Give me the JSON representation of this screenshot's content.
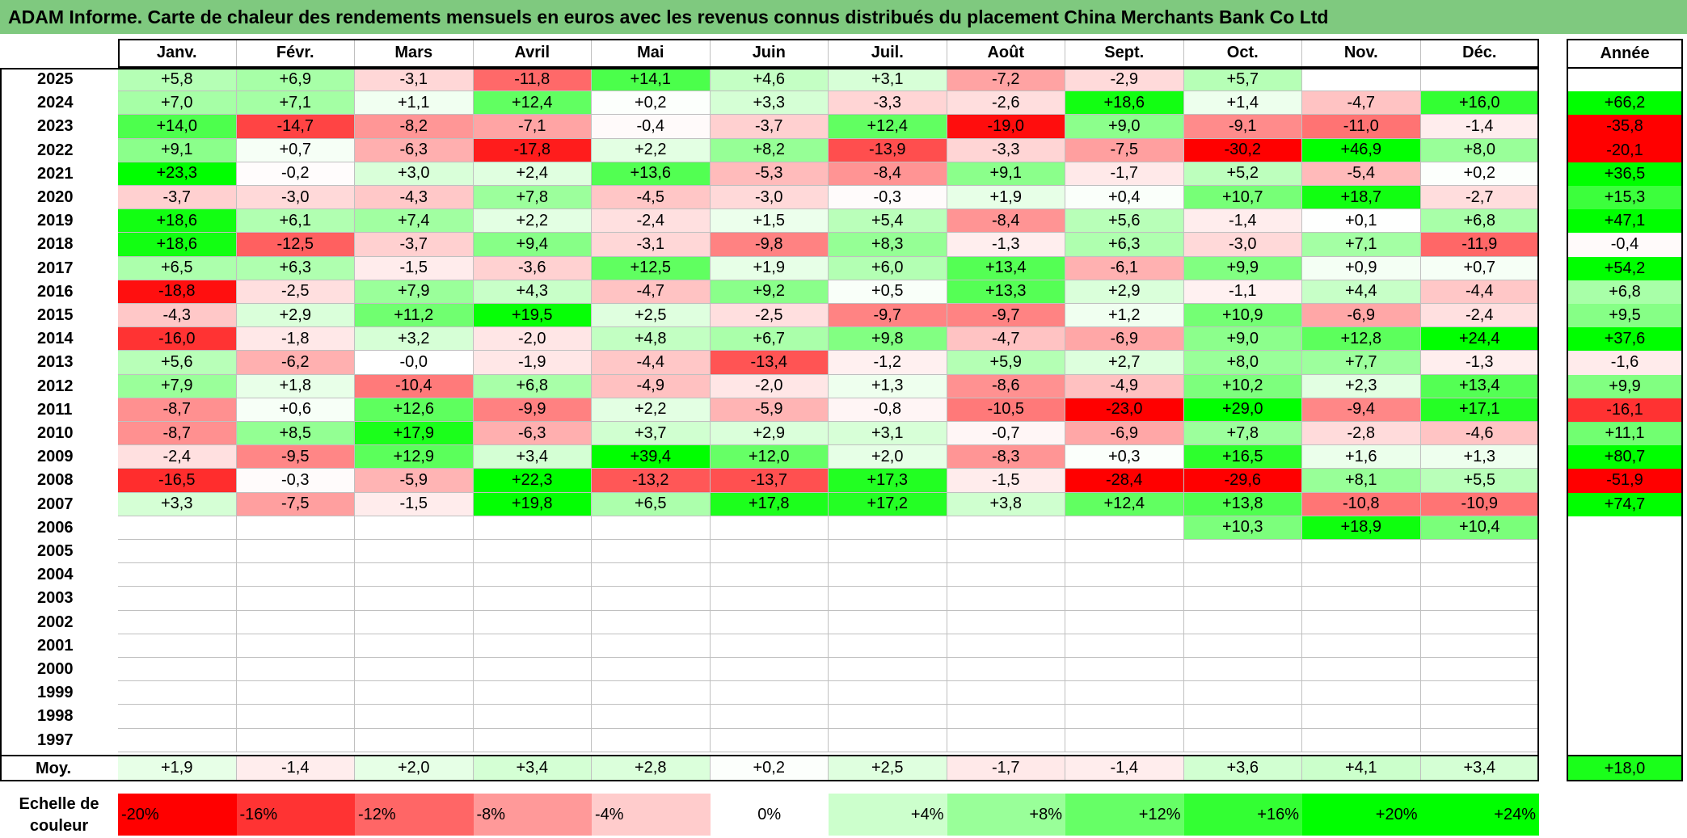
{
  "title": "ADAM Informe. Carte de chaleur des rendements mensuels en euros avec les revenus connus distribués du placement China Merchants Bank Co Ltd",
  "chart_data": {
    "type": "heatmap",
    "title": "ADAM Informe. Carte de chaleur des rendements mensuels en euros avec les revenus connus distribués du placement China Merchants Bank Co Ltd",
    "months": [
      "Janv.",
      "Févr.",
      "Mars",
      "Avril",
      "Mai",
      "Juin",
      "Juil.",
      "Août",
      "Sept.",
      "Oct.",
      "Nov.",
      "Déc."
    ],
    "year_header": "Année",
    "rows": [
      {
        "year": "2025",
        "values": [
          "+5,8",
          "+6,9",
          "-3,1",
          "-11,8",
          "+14,1",
          "+4,6",
          "+3,1",
          "-7,2",
          "-2,9",
          "+5,7",
          "",
          ""
        ],
        "annual": ""
      },
      {
        "year": "2024",
        "values": [
          "+7,0",
          "+7,1",
          "+1,1",
          "+12,4",
          "+0,2",
          "+3,3",
          "-3,3",
          "-2,6",
          "+18,6",
          "+1,4",
          "-4,7",
          "+16,0"
        ],
        "annual": "+66,2"
      },
      {
        "year": "2023",
        "values": [
          "+14,0",
          "-14,7",
          "-8,2",
          "-7,1",
          "-0,4",
          "-3,7",
          "+12,4",
          "-19,0",
          "+9,0",
          "-9,1",
          "-11,0",
          "-1,4"
        ],
        "annual": "-35,8"
      },
      {
        "year": "2022",
        "values": [
          "+9,1",
          "+0,7",
          "-6,3",
          "-17,8",
          "+2,2",
          "+8,2",
          "-13,9",
          "-3,3",
          "-7,5",
          "-30,2",
          "+46,9",
          "+8,0"
        ],
        "annual": "-20,1"
      },
      {
        "year": "2021",
        "values": [
          "+23,3",
          "-0,2",
          "+3,0",
          "+2,4",
          "+13,6",
          "-5,3",
          "-8,4",
          "+9,1",
          "-1,7",
          "+5,2",
          "-5,4",
          "+0,2"
        ],
        "annual": "+36,5"
      },
      {
        "year": "2020",
        "values": [
          "-3,7",
          "-3,0",
          "-4,3",
          "+7,8",
          "-4,5",
          "-3,0",
          "-0,3",
          "+1,9",
          "+0,4",
          "+10,7",
          "+18,7",
          "-2,7"
        ],
        "annual": "+15,3"
      },
      {
        "year": "2019",
        "values": [
          "+18,6",
          "+6,1",
          "+7,4",
          "+2,2",
          "-2,4",
          "+1,5",
          "+5,4",
          "-8,4",
          "+5,6",
          "-1,4",
          "+0,1",
          "+6,8"
        ],
        "annual": "+47,1"
      },
      {
        "year": "2018",
        "values": [
          "+18,6",
          "-12,5",
          "-3,7",
          "+9,4",
          "-3,1",
          "-9,8",
          "+8,3",
          "-1,3",
          "+6,3",
          "-3,0",
          "+7,1",
          "-11,9"
        ],
        "annual": "-0,4"
      },
      {
        "year": "2017",
        "values": [
          "+6,5",
          "+6,3",
          "-1,5",
          "-3,6",
          "+12,5",
          "+1,9",
          "+6,0",
          "+13,4",
          "-6,1",
          "+9,9",
          "+0,9",
          "+0,7"
        ],
        "annual": "+54,2"
      },
      {
        "year": "2016",
        "values": [
          "-18,8",
          "-2,5",
          "+7,9",
          "+4,3",
          "-4,7",
          "+9,2",
          "+0,5",
          "+13,3",
          "+2,9",
          "-1,1",
          "+4,4",
          "-4,4"
        ],
        "annual": "+6,8"
      },
      {
        "year": "2015",
        "values": [
          "-4,3",
          "+2,9",
          "+11,2",
          "+19,5",
          "+2,5",
          "-2,5",
          "-9,7",
          "-9,7",
          "+1,2",
          "+10,9",
          "-6,9",
          "-2,4"
        ],
        "annual": "+9,5"
      },
      {
        "year": "2014",
        "values": [
          "-16,0",
          "-1,8",
          "+3,2",
          "-2,0",
          "+4,8",
          "+6,7",
          "+9,8",
          "-4,7",
          "-6,9",
          "+9,0",
          "+12,8",
          "+24,4"
        ],
        "annual": "+37,6"
      },
      {
        "year": "2013",
        "values": [
          "+5,6",
          "-6,2",
          "-0,0",
          "-1,9",
          "-4,4",
          "-13,4",
          "-1,2",
          "+5,9",
          "+2,7",
          "+8,0",
          "+7,7",
          "-1,3"
        ],
        "annual": "-1,6"
      },
      {
        "year": "2012",
        "values": [
          "+7,9",
          "+1,8",
          "-10,4",
          "+6,8",
          "-4,9",
          "-2,0",
          "+1,3",
          "-8,6",
          "-4,9",
          "+10,2",
          "+2,3",
          "+13,4"
        ],
        "annual": "+9,9"
      },
      {
        "year": "2011",
        "values": [
          "-8,7",
          "+0,6",
          "+12,6",
          "-9,9",
          "+2,2",
          "-5,9",
          "-0,8",
          "-10,5",
          "-23,0",
          "+29,0",
          "-9,4",
          "+17,1"
        ],
        "annual": "-16,1"
      },
      {
        "year": "2010",
        "values": [
          "-8,7",
          "+8,5",
          "+17,9",
          "-6,3",
          "+3,7",
          "+2,9",
          "+3,1",
          "-0,7",
          "-6,9",
          "+7,8",
          "-2,8",
          "-4,6"
        ],
        "annual": "+11,1"
      },
      {
        "year": "2009",
        "values": [
          "-2,4",
          "-9,5",
          "+12,9",
          "+3,4",
          "+39,4",
          "+12,0",
          "+2,0",
          "-8,3",
          "+0,3",
          "+16,5",
          "+1,6",
          "+1,3"
        ],
        "annual": "+80,7"
      },
      {
        "year": "2008",
        "values": [
          "-16,5",
          "-0,3",
          "-5,9",
          "+22,3",
          "-13,2",
          "-13,7",
          "+17,3",
          "-1,5",
          "-28,4",
          "-29,6",
          "+8,1",
          "+5,5"
        ],
        "annual": "-51,9"
      },
      {
        "year": "2007",
        "values": [
          "+3,3",
          "-7,5",
          "-1,5",
          "+19,8",
          "+6,5",
          "+17,8",
          "+17,2",
          "+3,8",
          "+12,4",
          "+13,8",
          "-10,8",
          "-10,9"
        ],
        "annual": "+74,7"
      },
      {
        "year": "2006",
        "values": [
          "",
          "",
          "",
          "",
          "",
          "",
          "",
          "",
          "",
          "+10,3",
          "+18,9",
          "+10,4"
        ],
        "annual": ""
      },
      {
        "year": "2005",
        "values": [
          "",
          "",
          "",
          "",
          "",
          "",
          "",
          "",
          "",
          "",
          "",
          ""
        ],
        "annual": ""
      },
      {
        "year": "2004",
        "values": [
          "",
          "",
          "",
          "",
          "",
          "",
          "",
          "",
          "",
          "",
          "",
          ""
        ],
        "annual": ""
      },
      {
        "year": "2003",
        "values": [
          "",
          "",
          "",
          "",
          "",
          "",
          "",
          "",
          "",
          "",
          "",
          ""
        ],
        "annual": ""
      },
      {
        "year": "2002",
        "values": [
          "",
          "",
          "",
          "",
          "",
          "",
          "",
          "",
          "",
          "",
          "",
          ""
        ],
        "annual": ""
      },
      {
        "year": "2001",
        "values": [
          "",
          "",
          "",
          "",
          "",
          "",
          "",
          "",
          "",
          "",
          "",
          ""
        ],
        "annual": ""
      },
      {
        "year": "2000",
        "values": [
          "",
          "",
          "",
          "",
          "",
          "",
          "",
          "",
          "",
          "",
          "",
          ""
        ],
        "annual": ""
      },
      {
        "year": "1999",
        "values": [
          "",
          "",
          "",
          "",
          "",
          "",
          "",
          "",
          "",
          "",
          "",
          ""
        ],
        "annual": ""
      },
      {
        "year": "1998",
        "values": [
          "",
          "",
          "",
          "",
          "",
          "",
          "",
          "",
          "",
          "",
          "",
          ""
        ],
        "annual": ""
      },
      {
        "year": "1997",
        "values": [
          "",
          "",
          "",
          "",
          "",
          "",
          "",
          "",
          "",
          "",
          "",
          ""
        ],
        "annual": ""
      }
    ],
    "average": {
      "label": "Moy.",
      "values": [
        "+1,9",
        "-1,4",
        "+2,0",
        "+3,4",
        "+2,8",
        "+0,2",
        "+2,5",
        "-1,7",
        "-1,4",
        "+3,6",
        "+4,1",
        "+3,4"
      ],
      "annual": "+18,0"
    },
    "legend": {
      "label": "Echelle de couleur",
      "steps": [
        {
          "text": "-20%",
          "value": -20
        },
        {
          "text": "-16%",
          "value": -16
        },
        {
          "text": "-12%",
          "value": -12
        },
        {
          "text": "-8%",
          "value": -8
        },
        {
          "text": "-4%",
          "value": -4
        },
        {
          "text": "0%",
          "value": 0
        },
        {
          "text": "+4%",
          "value": 4
        },
        {
          "text": "+8%",
          "value": 8
        },
        {
          "text": "+12%",
          "value": 12
        },
        {
          "text": "+16%",
          "value": 16
        },
        {
          "text": "+20%",
          "value": 20
        },
        {
          "text": "+24%",
          "value": 24
        }
      ]
    }
  }
}
